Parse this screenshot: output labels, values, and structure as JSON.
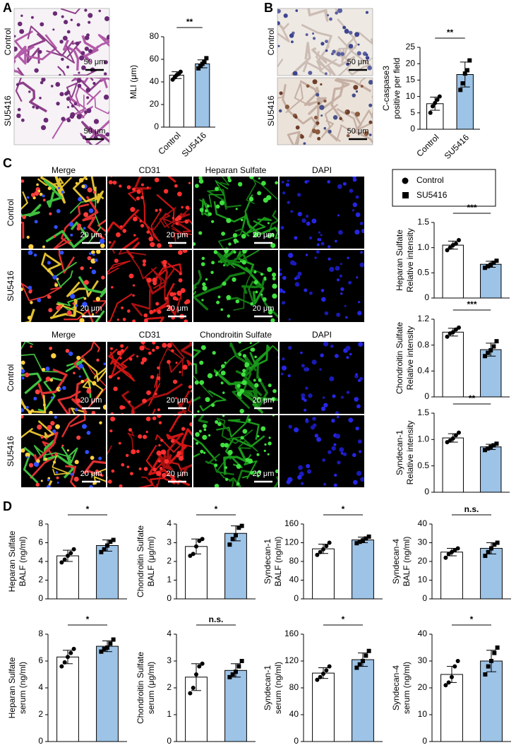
{
  "panel_labels": [
    "A",
    "B",
    "C",
    "D"
  ],
  "legend": [
    "Control",
    "SU5416"
  ],
  "images": {
    "A": {
      "rows": [
        "Control",
        "SU5416"
      ],
      "scale_bar": "50 μm"
    },
    "B": {
      "rows": [
        "Control",
        "SU5416"
      ],
      "scale_bar": "50 μm"
    },
    "C": [
      {
        "columns": [
          "Merge",
          "CD31",
          "Heparan Sulfate",
          "DAPI"
        ],
        "rows": [
          "Control",
          "SU5416"
        ],
        "scale_bar": "20 μm"
      },
      {
        "columns": [
          "Merge",
          "CD31",
          "Chondroitin Sulfate",
          "DAPI"
        ],
        "rows": [
          "Control",
          "SU5416"
        ],
        "scale_bar": "20 μm"
      }
    ]
  },
  "chart_data": [
    {
      "type": "bar",
      "ylabel": [
        "MLI (μm)"
      ],
      "categories": [
        "Control",
        "SU5416"
      ],
      "values": [
        46,
        56
      ],
      "errors": [
        3,
        3.5
      ],
      "points": [
        [
          42,
          44,
          46,
          47,
          49
        ],
        [
          52,
          54,
          56,
          58,
          61
        ]
      ],
      "colors": [
        "#ffffff",
        "#9dc3e6"
      ],
      "markers": [
        "circle",
        "square"
      ],
      "ylim": [
        0,
        80
      ],
      "yticks": [
        0,
        20,
        40,
        60,
        80
      ],
      "significance": "**"
    },
    {
      "type": "bar",
      "ylabel": [
        "C-caspase3",
        "positive per field"
      ],
      "categories": [
        "Control",
        "SU5416"
      ],
      "values": [
        7.8,
        16.7
      ],
      "errors": [
        2,
        3.8
      ],
      "points": [
        [
          5,
          7,
          8,
          9,
          10
        ],
        [
          12,
          14,
          17,
          18,
          21
        ]
      ],
      "colors": [
        "#ffffff",
        "#9dc3e6"
      ],
      "markers": [
        "circle",
        "square"
      ],
      "ylim": [
        0,
        25
      ],
      "yticks": [
        0,
        5,
        10,
        15,
        20,
        25
      ],
      "significance": "**"
    },
    {
      "type": "bar",
      "ylabel": [
        "Heparan Sulfate",
        "Relative intensity"
      ],
      "categories": [
        null,
        null
      ],
      "values": [
        1.05,
        0.67
      ],
      "errors": [
        0.08,
        0.06
      ],
      "points": [
        [
          0.95,
          1.0,
          1.05,
          1.08,
          1.15
        ],
        [
          0.6,
          0.63,
          0.66,
          0.7,
          0.74
        ]
      ],
      "colors": [
        "#ffffff",
        "#9dc3e6"
      ],
      "markers": [
        "circle",
        "square"
      ],
      "ylim": [
        0,
        1.5
      ],
      "yticks": [
        0,
        0.5,
        {
          "value": 1,
          "label": "1.0"
        },
        1.5
      ],
      "significance": "***"
    },
    {
      "type": "bar",
      "ylabel": [
        "Chondroitin Sulfate",
        "Relative intensity"
      ],
      "categories": [
        null,
        null
      ],
      "values": [
        1.0,
        0.73
      ],
      "errors": [
        0.06,
        0.1
      ],
      "points": [
        [
          0.93,
          0.98,
          1.0,
          1.04,
          1.07
        ],
        [
          0.63,
          0.68,
          0.72,
          0.78,
          0.86
        ]
      ],
      "colors": [
        "#ffffff",
        "#9dc3e6"
      ],
      "markers": [
        "circle",
        "square"
      ],
      "ylim": [
        0,
        1.2
      ],
      "yticks": [
        0,
        0.4,
        0.8,
        1.2
      ],
      "significance": "***"
    },
    {
      "type": "bar",
      "ylabel": [
        "Syndecan-1",
        "Relative intensity"
      ],
      "categories": [
        null,
        null
      ],
      "values": [
        1.03,
        0.86
      ],
      "errors": [
        0.08,
        0.05
      ],
      "points": [
        [
          0.95,
          0.98,
          1.02,
          1.08,
          1.13
        ],
        [
          0.8,
          0.83,
          0.86,
          0.89,
          0.92
        ]
      ],
      "colors": [
        "#ffffff",
        "#9dc3e6"
      ],
      "markers": [
        "circle",
        "square"
      ],
      "ylim": [
        0,
        1.5
      ],
      "yticks": [
        0,
        0.5,
        {
          "value": 1,
          "label": "1.0"
        },
        1.5
      ],
      "significance": "**"
    },
    {
      "type": "bar",
      "ylabel": [
        "Heparan Sulfate",
        "BALF (ng/ml)"
      ],
      "categories": [
        null,
        null
      ],
      "values": [
        4.6,
        5.7
      ],
      "errors": [
        0.6,
        0.6
      ],
      "points": [
        [
          3.9,
          4.2,
          4.6,
          4.9,
          5.3
        ],
        [
          5.0,
          5.3,
          5.7,
          6.1,
          6.3
        ]
      ],
      "colors": [
        "#ffffff",
        "#9dc3e6"
      ],
      "markers": [
        "circle",
        "square"
      ],
      "ylim": [
        0,
        8
      ],
      "yticks": [
        0,
        2,
        4,
        6,
        8
      ],
      "significance": "*"
    },
    {
      "type": "bar",
      "ylabel": [
        "Chondroitin Sulfate",
        "BALF (μg/ml)"
      ],
      "categories": [
        null,
        null
      ],
      "values": [
        2.8,
        3.5
      ],
      "errors": [
        0.4,
        0.4
      ],
      "points": [
        [
          2.3,
          2.4,
          2.8,
          3.1,
          3.2
        ],
        [
          2.9,
          3.2,
          3.4,
          3.8,
          3.9
        ]
      ],
      "colors": [
        "#ffffff",
        "#9dc3e6"
      ],
      "markers": [
        "circle",
        "square"
      ],
      "ylim": [
        0,
        4
      ],
      "yticks": [
        0,
        1,
        2,
        3,
        4
      ],
      "significance": "*"
    },
    {
      "type": "bar",
      "ylabel": [
        "Syndecan-1",
        "BALF (ng/ml)"
      ],
      "categories": [
        null,
        null
      ],
      "values": [
        107,
        126
      ],
      "errors": [
        10,
        6
      ],
      "points": [
        [
          94,
          100,
          106,
          113,
          120
        ],
        [
          119,
          122,
          125,
          129,
          133
        ]
      ],
      "colors": [
        "#ffffff",
        "#9dc3e6"
      ],
      "markers": [
        "circle",
        "square"
      ],
      "ylim": [
        0,
        160
      ],
      "yticks": [
        0,
        40,
        80,
        120,
        160
      ],
      "significance": "*"
    },
    {
      "type": "bar",
      "ylabel": [
        "Syndecan-4",
        "BALF (ng/ml)"
      ],
      "categories": [
        null,
        null
      ],
      "values": [
        25,
        27
      ],
      "errors": [
        2,
        3
      ],
      "points": [
        [
          22,
          24,
          25,
          26,
          27
        ],
        [
          23,
          25,
          27,
          29,
          30
        ]
      ],
      "colors": [
        "#ffffff",
        "#9dc3e6"
      ],
      "markers": [
        "circle",
        "square"
      ],
      "ylim": [
        0,
        40
      ],
      "yticks": [
        0,
        10,
        20,
        30,
        40
      ],
      "significance": "n.s."
    },
    {
      "type": "bar",
      "ylabel": [
        "Heparan Sulfate",
        "serum (ng/ml)"
      ],
      "categories": [
        null,
        null
      ],
      "values": [
        6.3,
        7.1
      ],
      "errors": [
        0.5,
        0.4
      ],
      "points": [
        [
          5.6,
          5.9,
          6.3,
          6.6,
          6.9
        ],
        [
          6.7,
          6.9,
          7.0,
          7.3,
          7.6
        ]
      ],
      "colors": [
        "#ffffff",
        "#9dc3e6"
      ],
      "markers": [
        "circle",
        "square"
      ],
      "ylim": [
        0,
        8
      ],
      "yticks": [
        0,
        2,
        4,
        6,
        8
      ],
      "significance": "*"
    },
    {
      "type": "bar",
      "ylabel": [
        "Chondroitin Sulfate",
        "serum (μg/ml)"
      ],
      "categories": [
        null,
        null
      ],
      "values": [
        2.4,
        2.65
      ],
      "errors": [
        0.5,
        0.25
      ],
      "points": [
        [
          1.8,
          2.0,
          2.5,
          2.8,
          2.9
        ],
        [
          2.4,
          2.5,
          2.6,
          2.8,
          3.0
        ]
      ],
      "colors": [
        "#ffffff",
        "#9dc3e6"
      ],
      "markers": [
        "circle",
        "square"
      ],
      "ylim": [
        0,
        4
      ],
      "yticks": [
        0,
        1,
        2,
        3,
        4
      ],
      "significance": "n.s."
    },
    {
      "type": "bar",
      "ylabel": [
        "Syndecan-1",
        "serum (ng/ml)"
      ],
      "categories": [
        null,
        null
      ],
      "values": [
        102,
        122
      ],
      "errors": [
        8,
        10
      ],
      "points": [
        [
          92,
          96,
          101,
          106,
          112
        ],
        [
          110,
          115,
          120,
          128,
          135
        ]
      ],
      "colors": [
        "#ffffff",
        "#9dc3e6"
      ],
      "markers": [
        "circle",
        "square"
      ],
      "ylim": [
        0,
        160
      ],
      "yticks": [
        0,
        40,
        80,
        120,
        160
      ],
      "significance": "*"
    },
    {
      "type": "bar",
      "ylabel": [
        "Syndecan-4",
        "serum (ng/ml)"
      ],
      "categories": [
        null,
        null
      ],
      "values": [
        25,
        30
      ],
      "errors": [
        3,
        4
      ],
      "points": [
        [
          21,
          22,
          24,
          28,
          30
        ],
        [
          25,
          28,
          30,
          33,
          35
        ]
      ],
      "colors": [
        "#ffffff",
        "#9dc3e6"
      ],
      "markers": [
        "circle",
        "square"
      ],
      "ylim": [
        0,
        40
      ],
      "yticks": [
        0,
        10,
        20,
        30,
        40
      ],
      "significance": "*"
    }
  ]
}
